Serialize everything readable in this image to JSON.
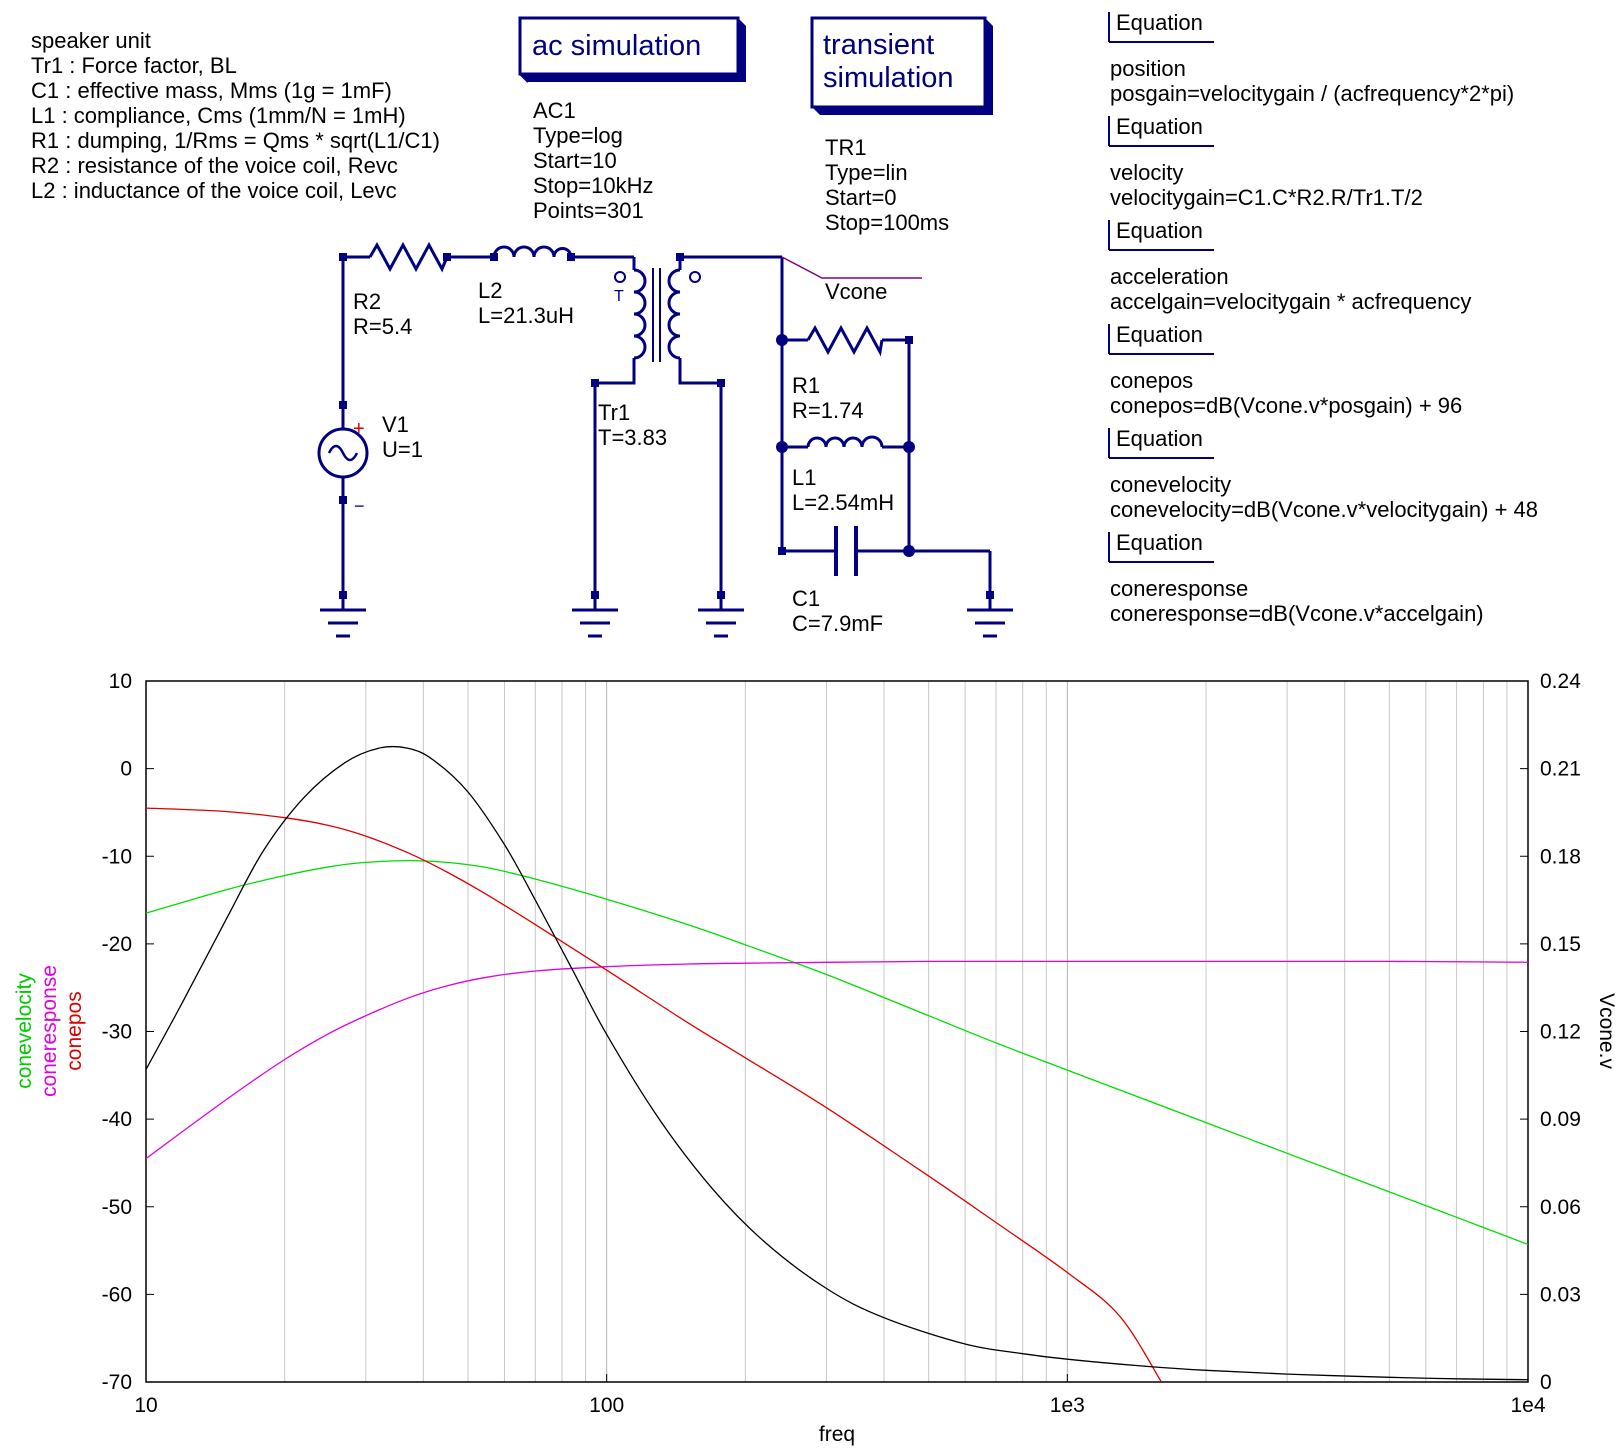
{
  "notes": [
    "speaker unit",
    "Tr1 : Force factor, BL",
    "C1 : effective mass, Mms (1g = 1mF)",
    "L1 : compliance, Cms (1mm/N = 1mH)",
    "R1 : dumping, 1/Rms = Qms * sqrt(L1/C1)",
    "R2 : resistance of the voice coil, Revc",
    "L2 : inductance of the voice coil, Levc"
  ],
  "sim_boxes": {
    "ac_title": "ac simulation",
    "tr_title_1": "transient",
    "tr_title_2": "simulation"
  },
  "ac_params": [
    "AC1",
    "Type=log",
    "Start=10",
    "Stop=10kHz",
    "Points=301"
  ],
  "tr_params": [
    "TR1",
    "Type=lin",
    "Start=0",
    "Stop=100ms"
  ],
  "equations": [
    {
      "title": "Equation",
      "line1": "position",
      "line2": "posgain=velocitygain / (acfrequency*2*pi)"
    },
    {
      "title": "Equation",
      "line1": "velocity",
      "line2": "velocitygain=C1.C*R2.R/Tr1.T/2"
    },
    {
      "title": "Equation",
      "line1": "acceleration",
      "line2": "accelgain=velocitygain * acfrequency"
    },
    {
      "title": "Equation",
      "line1": "conepos",
      "line2": "conepos=dB(Vcone.v*posgain) + 96"
    },
    {
      "title": "Equation",
      "line1": "conevelocity",
      "line2": "conevelocity=dB(Vcone.v*velocitygain) + 48"
    },
    {
      "title": "Equation",
      "line1": "coneresponse",
      "line2": "coneresponse=dB(Vcone.v*accelgain)"
    }
  ],
  "components": {
    "r2_name": "R2",
    "r2_val": "R=5.4",
    "l2_name": "L2",
    "l2_val": "L=21.3uH",
    "v1_name": "V1",
    "v1_val": "U=1",
    "tr1_name": "Tr1",
    "tr1_val": "T=3.83",
    "r1_name": "R1",
    "r1_val": "R=1.74",
    "l1_name": "L1",
    "l1_val": "L=2.54mH",
    "c1_name": "C1",
    "c1_val": "C=7.9mF",
    "vcone": "Vcone",
    "tr_mark": "T",
    "plus": "+",
    "minus": "−"
  },
  "chart_data": {
    "type": "line",
    "xlabel": "freq",
    "x_scale": "log",
    "xlim": [
      10,
      10000
    ],
    "x_ticks": [
      "10",
      "100",
      "1e3",
      "1e4"
    ],
    "ylim_left": [
      -70,
      10
    ],
    "y_ticks_left": [
      "10",
      "0",
      "-10",
      "-20",
      "-30",
      "-40",
      "-50",
      "-60",
      "-70"
    ],
    "ylim_right": [
      0,
      0.24
    ],
    "y_ticks_right": [
      "0.24",
      "0.21",
      "0.18",
      "0.15",
      "0.12",
      "0.09",
      "0.06",
      "0.03",
      "0"
    ],
    "ylabel_left": [
      "conevelocity",
      "coneresponse",
      "conepos"
    ],
    "ylabel_right": "Vcone.v",
    "grid": true,
    "colors": {
      "conevelocity": "#00dd00",
      "coneresponse": "#e000e0",
      "conepos": "#dd0000",
      "Vcone.v": "#000000"
    },
    "series": [
      {
        "name": "conevelocity",
        "axis": "left",
        "x": [
          10,
          15,
          20,
          25,
          30,
          37,
          45,
          55,
          70,
          100,
          150,
          200,
          300,
          500,
          700,
          1000,
          2000,
          3000,
          5000,
          7000,
          10000
        ],
        "y": [
          -16.5,
          -13.8,
          -12.2,
          -11.2,
          -10.7,
          -10.5,
          -10.7,
          -11.3,
          -12.6,
          -14.9,
          -17.8,
          -20.1,
          -23.5,
          -28.2,
          -31.3,
          -34.4,
          -40.4,
          -43.9,
          -48.3,
          -51.2,
          -54.3
        ]
      },
      {
        "name": "coneresponse",
        "axis": "left",
        "x": [
          10,
          15,
          20,
          25,
          30,
          37,
          45,
          55,
          70,
          100,
          150,
          200,
          300,
          500,
          1000,
          2000,
          5000,
          10000
        ],
        "y": [
          -44.5,
          -37.7,
          -33.2,
          -30.2,
          -28.2,
          -26.2,
          -24.8,
          -23.8,
          -23.1,
          -22.6,
          -22.3,
          -22.2,
          -22.1,
          -22.0,
          -22.0,
          -22.0,
          -22.0,
          -22.1
        ]
      },
      {
        "name": "conepos",
        "axis": "left",
        "x": [
          10,
          15,
          20,
          25,
          30,
          37,
          45,
          55,
          70,
          100,
          150,
          200,
          300,
          500,
          700,
          1000,
          1300,
          1600
        ],
        "y": [
          -4.5,
          -4.9,
          -5.6,
          -6.5,
          -7.7,
          -9.6,
          -11.8,
          -14.4,
          -17.8,
          -23.0,
          -29.0,
          -33.0,
          -38.7,
          -46.5,
          -51.8,
          -57.5,
          -62.5,
          -70
        ]
      },
      {
        "name": "Vcone.v",
        "axis": "right",
        "x": [
          10,
          12,
          15,
          18,
          22,
          27,
          32,
          37,
          42,
          50,
          60,
          70,
          85,
          100,
          130,
          170,
          220,
          300,
          400,
          600,
          800,
          1000,
          1500,
          2000,
          3000,
          5000,
          7000,
          10000
        ],
        "y": [
          0.107,
          0.13,
          0.159,
          0.182,
          0.2,
          0.212,
          0.217,
          0.217,
          0.213,
          0.202,
          0.184,
          0.165,
          0.14,
          0.119,
          0.09,
          0.066,
          0.048,
          0.032,
          0.022,
          0.013,
          0.0097,
          0.0078,
          0.0053,
          0.004,
          0.0027,
          0.0016,
          0.0011,
          0.0008
        ]
      }
    ]
  }
}
